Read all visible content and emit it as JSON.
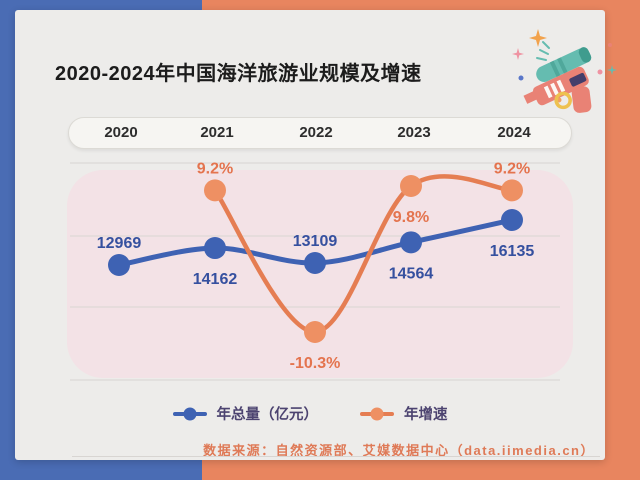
{
  "title": "2020-2024年中国海洋旅游业规模及增速",
  "source": "数据来源：自然资源部、艾媒数据中心（data.iimedia.cn）",
  "colors": {
    "frame_blue": "#4a6cb4",
    "frame_orange": "#e8855f",
    "card_bg": "#edecea",
    "plot_bg": "#f3e2e6",
    "gridline": "#d8d5d2",
    "title_text": "#1c1c1c",
    "year_text": "#2d2d2d",
    "legend_text": "#4c4370",
    "source_text": "#df7a57"
  },
  "chart_data": {
    "type": "line",
    "title": "2020-2024年中国海洋旅游业规模及增速",
    "categories": [
      "2020",
      "2021",
      "2022",
      "2023",
      "2024"
    ],
    "series": [
      {
        "name": "年总量（亿元）",
        "values": [
          12969,
          14162,
          13109,
          14564,
          16135
        ],
        "labels": [
          "12969",
          "14162",
          "13109",
          "14564",
          "16135"
        ],
        "label_positions": [
          "above",
          "below",
          "above",
          "below",
          "below"
        ],
        "color": "#3e62b3",
        "point_color": "#3e62b3",
        "label_color": "#35509f"
      },
      {
        "name": "年增速",
        "values": [
          null,
          9.2,
          -10.3,
          9.8,
          9.2
        ],
        "labels": [
          "",
          "9.2%",
          "-10.3%",
          "9.8%",
          "9.2%"
        ],
        "label_positions": [
          "",
          "above",
          "below",
          "below",
          "above"
        ],
        "color": "#e57d52",
        "point_color": "#ee9063",
        "label_color": "#e4744e"
      }
    ],
    "axes": {
      "value_range_total": [
        12000,
        17000
      ],
      "value_range_growth": [
        -15,
        15
      ]
    },
    "grid": true,
    "legend_position": "bottom"
  },
  "legend": [
    {
      "label": "年总量（亿元）",
      "series": 0
    },
    {
      "label": "年增速",
      "series": 1
    }
  ],
  "decoration": {
    "name": "water-gun-illustration"
  }
}
